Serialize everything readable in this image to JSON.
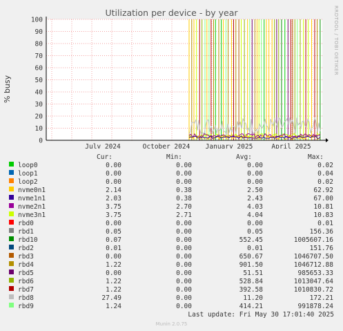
{
  "chart_data": {
    "type": "line",
    "title": "Utilization per device - by year",
    "ylabel": "% busy",
    "ylim": [
      0,
      100
    ],
    "yticks": [
      0,
      10,
      20,
      30,
      40,
      50,
      60,
      70,
      80,
      90,
      100
    ],
    "xticks": [
      "July 2024",
      "October 2024",
      "January 2025",
      "April 2025"
    ],
    "grid": true,
    "legend_columns": [
      "Cur:",
      "Min:",
      "Avg:",
      "Max:"
    ],
    "series": [
      {
        "name": "loop0",
        "color": "#00cc00",
        "cur": "0.00",
        "min": "0.00",
        "avg": "0.00",
        "max": "0.02"
      },
      {
        "name": "loop1",
        "color": "#0066b3",
        "cur": "0.00",
        "min": "0.00",
        "avg": "0.00",
        "max": "0.04"
      },
      {
        "name": "loop2",
        "color": "#ff8000",
        "cur": "0.00",
        "min": "0.00",
        "avg": "0.00",
        "max": "0.02"
      },
      {
        "name": "nvme0n1",
        "color": "#ffcc00",
        "cur": "2.14",
        "min": "0.38",
        "avg": "2.50",
        "max": "62.92"
      },
      {
        "name": "nvme1n1",
        "color": "#330099",
        "cur": "2.03",
        "min": "0.38",
        "avg": "2.43",
        "max": "67.00"
      },
      {
        "name": "nvme2n1",
        "color": "#990099",
        "cur": "3.75",
        "min": "2.70",
        "avg": "4.03",
        "max": "10.81"
      },
      {
        "name": "nvme3n1",
        "color": "#ccff00",
        "cur": "3.75",
        "min": "2.71",
        "avg": "4.04",
        "max": "10.83"
      },
      {
        "name": "rbd0",
        "color": "#ff0000",
        "cur": "0.00",
        "min": "0.00",
        "avg": "0.00",
        "max": "0.01"
      },
      {
        "name": "rbd1",
        "color": "#808080",
        "cur": "0.05",
        "min": "0.00",
        "avg": "0.05",
        "max": "156.36"
      },
      {
        "name": "rbd10",
        "color": "#008f00",
        "cur": "0.07",
        "min": "0.00",
        "avg": "552.45",
        "max": "1005607.16"
      },
      {
        "name": "rbd2",
        "color": "#00487d",
        "cur": "0.01",
        "min": "0.00",
        "avg": "0.01",
        "max": "151.76"
      },
      {
        "name": "rbd3",
        "color": "#b35a00",
        "cur": "0.00",
        "min": "0.00",
        "avg": "650.67",
        "max": "1046707.50"
      },
      {
        "name": "rbd4",
        "color": "#b38f00",
        "cur": "1.22",
        "min": "0.00",
        "avg": "901.50",
        "max": "1046712.88"
      },
      {
        "name": "rbd5",
        "color": "#6b006b",
        "cur": "0.00",
        "min": "0.00",
        "avg": "51.51",
        "max": "985653.33"
      },
      {
        "name": "rbd6",
        "color": "#8fb300",
        "cur": "1.22",
        "min": "0.00",
        "avg": "528.84",
        "max": "1013047.64"
      },
      {
        "name": "rbd7",
        "color": "#b30000",
        "cur": "1.22",
        "min": "0.00",
        "avg": "392.58",
        "max": "1010830.72"
      },
      {
        "name": "rbd8",
        "color": "#bebebe",
        "cur": "27.49",
        "min": "0.00",
        "avg": "11.20",
        "max": "172.21"
      },
      {
        "name": "rbd9",
        "color": "#80ff80",
        "cur": "1.24",
        "min": "0.00",
        "avg": "414.21",
        "max": "991878.24"
      }
    ]
  },
  "footer": {
    "last_update": "Last update: Fri May 30 17:01:40 2025",
    "munin": "Munin 2.0.75"
  },
  "watermark": "RRDTOOL / TOBI OETIKER"
}
